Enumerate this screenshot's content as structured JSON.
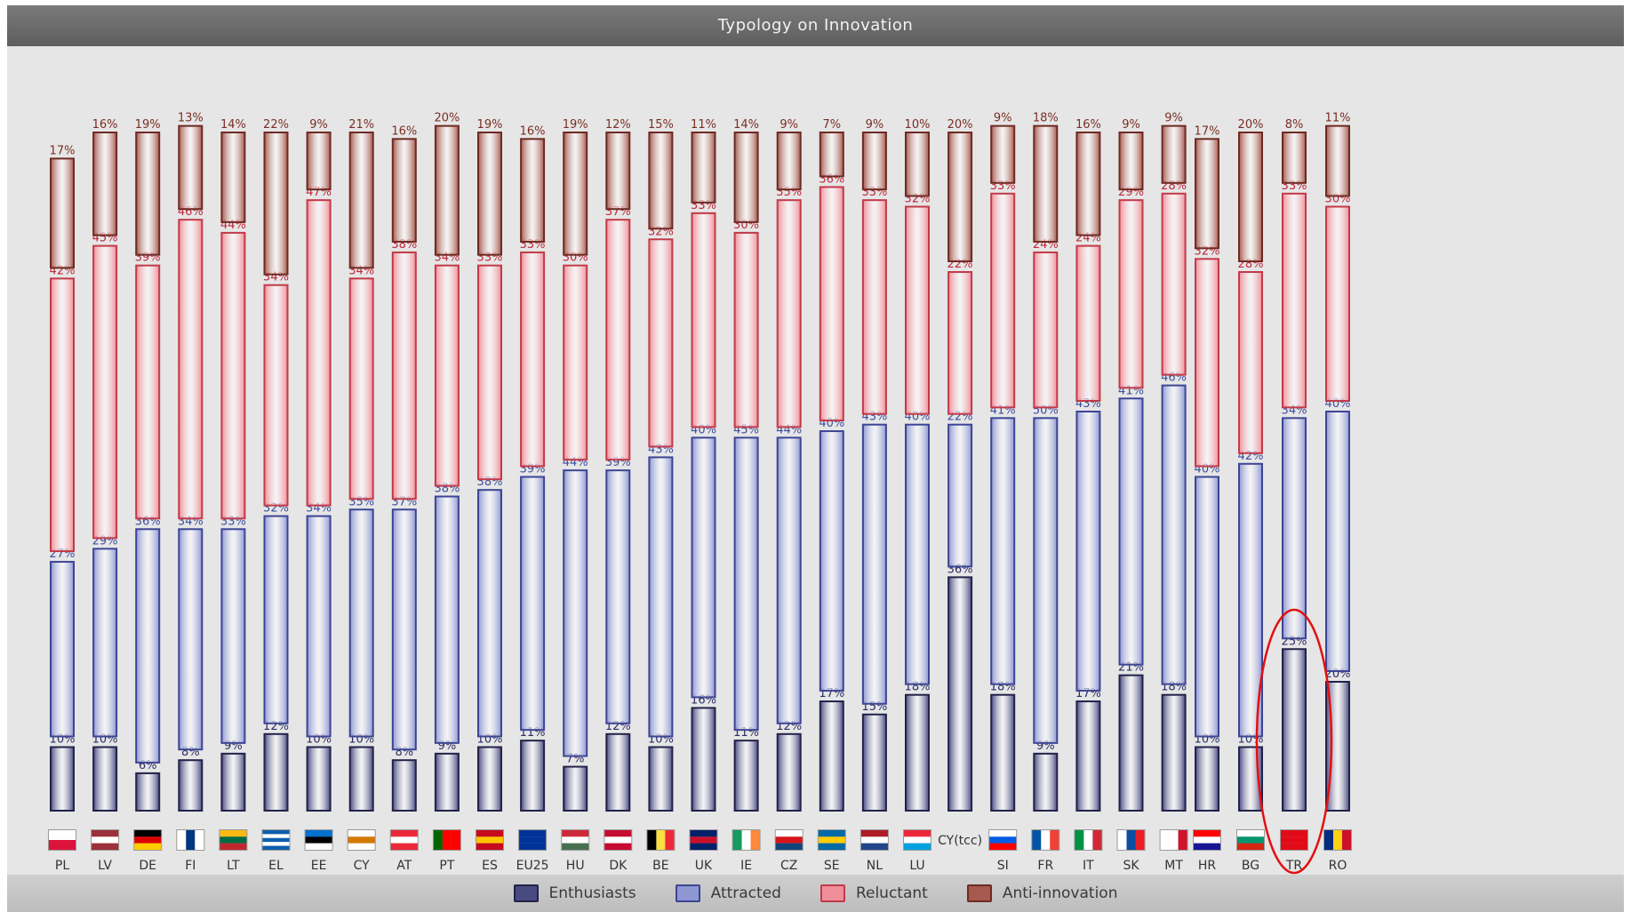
{
  "chart_data": {
    "type": "bar",
    "stacked": true,
    "title": "Typology on Innovation",
    "ylim": [
      0,
      100
    ],
    "categories": [
      "PL",
      "LV",
      "DE",
      "FI",
      "LT",
      "EL",
      "EE",
      "CY",
      "AT",
      "PT",
      "ES",
      "EU25",
      "HU",
      "DK",
      "BE",
      "UK",
      "IE",
      "CZ",
      "SE",
      "NL",
      "LU",
      "CY(tcc)",
      "SI",
      "FR",
      "IT",
      "SK",
      "MT",
      "HR",
      "BG",
      "TR",
      "RO"
    ],
    "series": [
      {
        "name": "Enthusiasts",
        "color": "#4a4a82",
        "values": [
          10,
          10,
          6,
          8,
          9,
          12,
          10,
          10,
          8,
          9,
          10,
          11,
          7,
          12,
          10,
          16,
          11,
          12,
          17,
          15,
          18,
          36,
          18,
          9,
          17,
          21,
          18,
          10,
          10,
          25,
          20
        ]
      },
      {
        "name": "Attracted",
        "color": "#8e97d2",
        "values": [
          27,
          29,
          36,
          34,
          33,
          32,
          34,
          35,
          37,
          38,
          38,
          39,
          44,
          39,
          43,
          40,
          45,
          44,
          40,
          43,
          40,
          22,
          41,
          50,
          43,
          41,
          46,
          40,
          42,
          34,
          40
        ]
      },
      {
        "name": "Reluctant",
        "color": "#f08f99",
        "values": [
          42,
          45,
          39,
          46,
          44,
          34,
          47,
          34,
          38,
          34,
          33,
          33,
          30,
          37,
          32,
          33,
          30,
          35,
          36,
          33,
          32,
          22,
          33,
          24,
          24,
          29,
          28,
          32,
          28,
          33,
          30
        ]
      },
      {
        "name": "Anti-innovation",
        "color": "#a65a4e",
        "values": [
          17,
          16,
          19,
          13,
          14,
          22,
          9,
          21,
          16,
          20,
          19,
          16,
          19,
          12,
          15,
          11,
          14,
          9,
          7,
          9,
          10,
          20,
          9,
          18,
          16,
          9,
          9,
          17,
          20,
          8,
          11
        ]
      }
    ],
    "flags": {
      "PL": [
        "#ffffff",
        "#dc143c"
      ],
      "LV": [
        "#9e3039",
        "#ffffff",
        "#9e3039"
      ],
      "DE": [
        "#000000",
        "#dd0000",
        "#ffce00"
      ],
      "FI": [
        "#ffffff",
        "#003580",
        "#ffffff"
      ],
      "LT": [
        "#fdb913",
        "#006a44",
        "#c1272d"
      ],
      "EL": [
        "#0d5eaf",
        "#ffffff",
        "#0d5eaf",
        "#ffffff",
        "#0d5eaf"
      ],
      "EE": [
        "#0072ce",
        "#000000",
        "#ffffff"
      ],
      "CY": [
        "#ffffff",
        "#d57800",
        "#ffffff"
      ],
      "AT": [
        "#ed2939",
        "#ffffff",
        "#ed2939"
      ],
      "PT": [
        "#006600",
        "#ff0000",
        "#ff0000"
      ],
      "ES": [
        "#c60b1e",
        "#ffc400",
        "#c60b1e"
      ],
      "EU25": [
        "#003399",
        "#003399",
        "#003399"
      ],
      "HU": [
        "#ce2939",
        "#ffffff",
        "#477050"
      ],
      "DK": [
        "#c60c30",
        "#ffffff",
        "#c60c30"
      ],
      "BE": [
        "#000000",
        "#fae042",
        "#ed2939"
      ],
      "UK": [
        "#012169",
        "#c8102e",
        "#012169"
      ],
      "IE": [
        "#169b62",
        "#ffffff",
        "#ff883e"
      ],
      "CZ": [
        "#ffffff",
        "#d7141a",
        "#11457e"
      ],
      "SE": [
        "#006aa7",
        "#fecc00",
        "#006aa7"
      ],
      "NL": [
        "#ae1c28",
        "#ffffff",
        "#21468b"
      ],
      "LU": [
        "#ed2939",
        "#ffffff",
        "#00a1de"
      ],
      "CY(tcc)": [],
      "SI": [
        "#ffffff",
        "#005ce5",
        "#ff0000"
      ],
      "FR": [
        "#0055a4",
        "#ffffff",
        "#ef4135"
      ],
      "IT": [
        "#009246",
        "#ffffff",
        "#ce2b37"
      ],
      "SK": [
        "#ffffff",
        "#0b4ea2",
        "#ee1c25"
      ],
      "MT": [
        "#ffffff",
        "#ffffff",
        "#cf142b"
      ],
      "HR": [
        "#ff0000",
        "#ffffff",
        "#171796"
      ],
      "BG": [
        "#ffffff",
        "#00966e",
        "#d62612"
      ],
      "TR": [
        "#e30a17",
        "#e30a17",
        "#e30a17"
      ],
      "RO": [
        "#002b7f",
        "#fcd116",
        "#ce1126"
      ]
    },
    "highlight": "TR"
  }
}
